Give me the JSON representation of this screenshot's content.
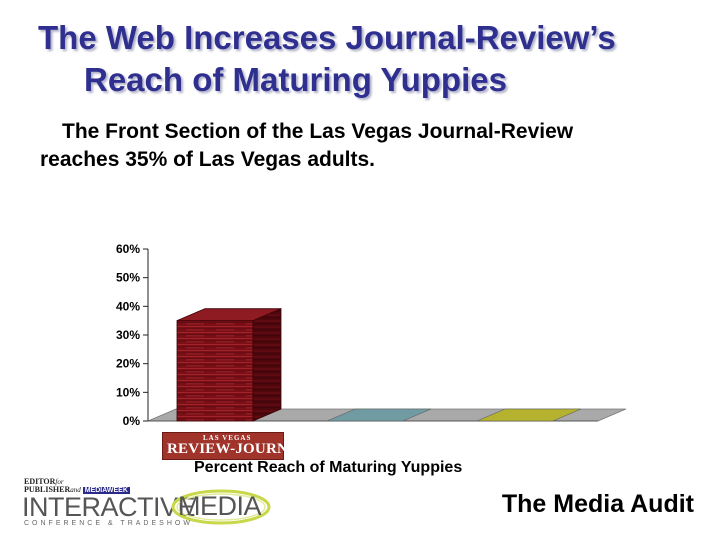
{
  "slide": {
    "title_line1": "The Web Increases Journal-Review’s",
    "title_line2": "Reach of Maturing Yuppies",
    "subtitle_line1": "The Front Section of the Las Vegas Journal-Review",
    "subtitle_line2": "reaches 35% of Las Vegas adults."
  },
  "chart_data": {
    "type": "bar",
    "style": "3d",
    "categories": [
      "Las Vegas Review-Journal",
      "",
      ""
    ],
    "values": [
      35,
      0,
      0
    ],
    "colors": [
      "#7a0f16",
      "#6a9aa3",
      "#b7b324"
    ],
    "y_ticks": [
      "0%",
      "10%",
      "20%",
      "30%",
      "40%",
      "50%",
      "60%"
    ],
    "ylim": [
      0,
      60
    ],
    "y_unit": "%",
    "xlabel": "Percent Reach of Maturing Yuppies",
    "grid": false,
    "legend": "none"
  },
  "category_logo": {
    "top_text": "LAS VEGAS",
    "main_text": "REVIEW-JOURNAL"
  },
  "footer": {
    "ep_line1": "EDITOR",
    "ep_for": "for",
    "ep_line2": "PUBLISHER",
    "ep_and": "and",
    "mediaweek": "MEDIAWEEK",
    "interactive": "INTERACTIVE",
    "media": "MEDIA",
    "conference": "CONFERENCE & TRADESHOW",
    "media_audit": "The Media Audit"
  }
}
